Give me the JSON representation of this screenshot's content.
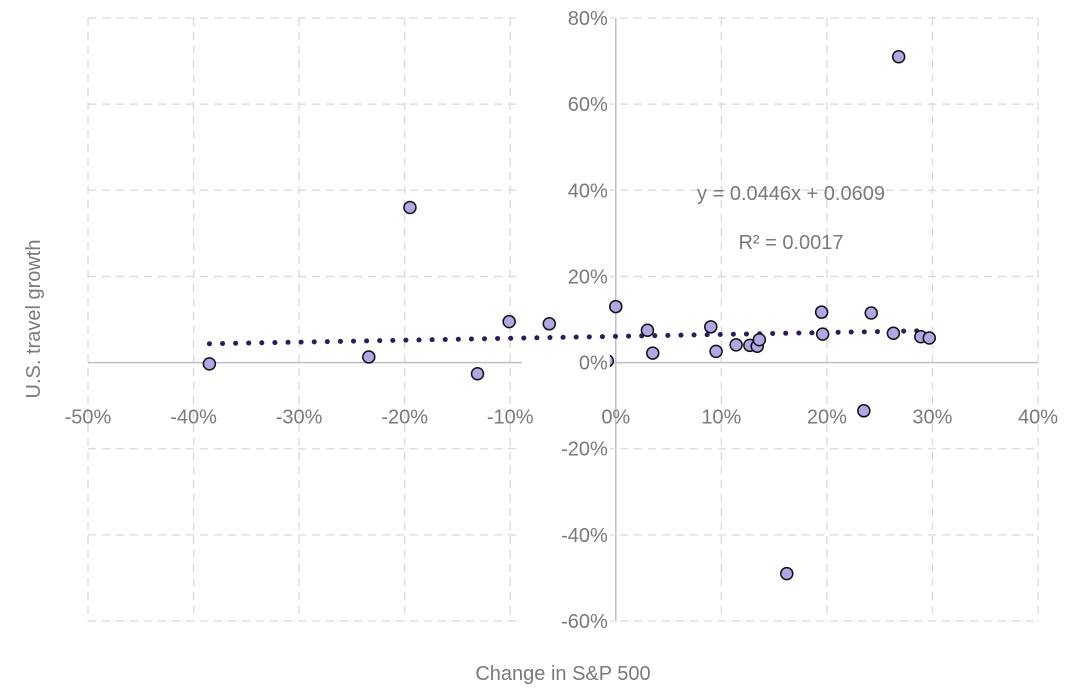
{
  "chart_data": {
    "type": "scatter",
    "xlabel": "Change in S&P 500",
    "ylabel": "U.S. travel growth",
    "xlim": [
      -0.5,
      0.4
    ],
    "ylim": [
      -0.6,
      0.8
    ],
    "x_ticks": [
      -0.5,
      -0.4,
      -0.3,
      -0.2,
      -0.1,
      0,
      0.1,
      0.2,
      0.3,
      0.4
    ],
    "x_tick_labels": [
      "-50%",
      "-40%",
      "-30%",
      "-20%",
      "-10%",
      "0%",
      "10%",
      "20%",
      "30%",
      "40%"
    ],
    "y_ticks": [
      -0.6,
      -0.4,
      -0.2,
      0,
      0.2,
      0.4,
      0.6,
      0.8
    ],
    "y_tick_labels": [
      "-60%",
      "-40%",
      "-20%",
      "0%",
      "20%",
      "40%",
      "60%",
      "80%"
    ],
    "grid": true,
    "points": [
      {
        "x": -0.385,
        "y": -0.003
      },
      {
        "x": -0.234,
        "y": 0.013
      },
      {
        "x": -0.195,
        "y": 0.36
      },
      {
        "x": -0.131,
        "y": -0.026
      },
      {
        "x": -0.101,
        "y": 0.095
      },
      {
        "x": -0.063,
        "y": 0.09
      },
      {
        "x": -0.008,
        "y": 0.004
      },
      {
        "x": 0.0,
        "y": 0.13
      },
      {
        "x": 0.03,
        "y": 0.075
      },
      {
        "x": 0.035,
        "y": 0.022
      },
      {
        "x": 0.09,
        "y": 0.083
      },
      {
        "x": 0.095,
        "y": 0.026
      },
      {
        "x": 0.114,
        "y": 0.041
      },
      {
        "x": 0.127,
        "y": 0.04
      },
      {
        "x": 0.134,
        "y": 0.038
      },
      {
        "x": 0.136,
        "y": 0.053
      },
      {
        "x": 0.162,
        "y": -0.49
      },
      {
        "x": 0.195,
        "y": 0.117
      },
      {
        "x": 0.196,
        "y": 0.066
      },
      {
        "x": 0.235,
        "y": -0.112
      },
      {
        "x": 0.242,
        "y": 0.115
      },
      {
        "x": 0.263,
        "y": 0.068
      },
      {
        "x": 0.268,
        "y": 0.71
      },
      {
        "x": 0.289,
        "y": 0.06
      },
      {
        "x": 0.297,
        "y": 0.057
      }
    ],
    "trendline": {
      "type": "linear",
      "slope": 0.0446,
      "intercept": 0.0609,
      "x_range": [
        -0.385,
        0.297
      ],
      "style": "dotted"
    },
    "annotations": {
      "equation": "y = 0.0446x + 0.0609",
      "r_squared": "R² = 0.0017"
    },
    "colors": {
      "point_fill": "#b3a6e6",
      "point_stroke": "#111111",
      "trendline": "#2e1a5c",
      "grid": "#d9d9d9",
      "axis": "#bfbfbf",
      "text": "#7a7a7a"
    }
  }
}
